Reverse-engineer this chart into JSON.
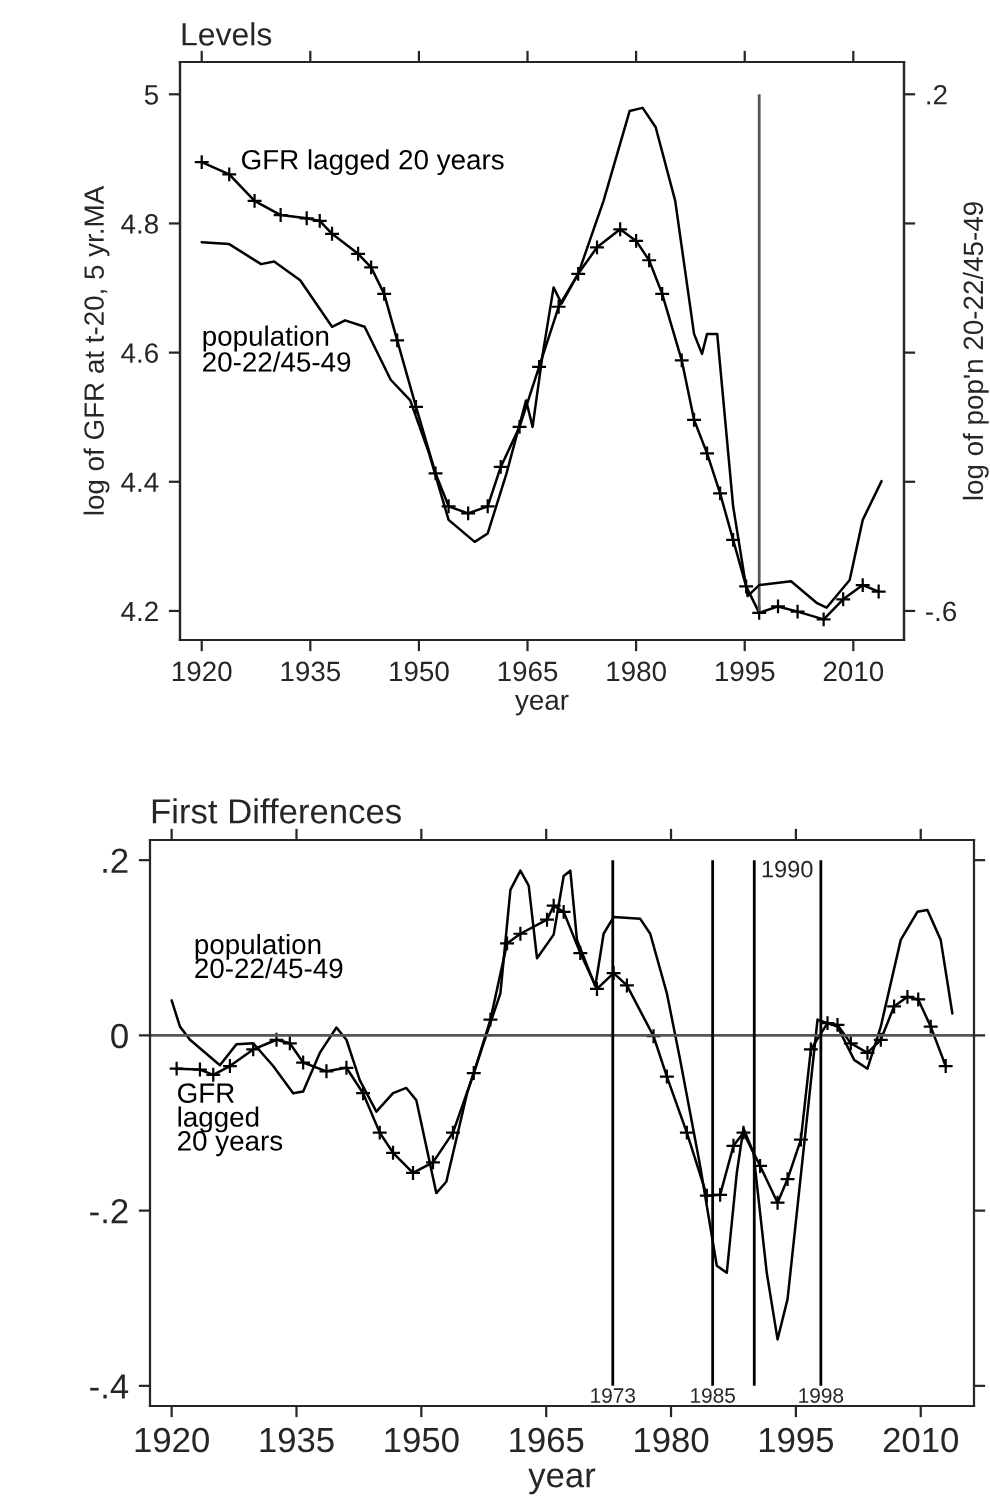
{
  "chart_data": [
    {
      "type": "line",
      "title": "Levels",
      "xlabel": "year",
      "ylabel": "log of GFR at t-20, 5 yr.MA",
      "y2label": "log of pop'n 20-22/45-49",
      "xlim": [
        1917,
        2017
      ],
      "xticks": [
        1920,
        1935,
        1950,
        1965,
        1980,
        1995,
        2010
      ],
      "ylim": [
        4.155,
        5.05
      ],
      "yticks": [
        4.2,
        4.4,
        4.6,
        4.8,
        5
      ],
      "y2lim": [
        -0.645,
        0.25
      ],
      "y2ticks": [
        {
          "value": 0.2,
          "label": ".2"
        },
        {
          "value": 0,
          "label": null
        },
        {
          "value": -0.2,
          "label": null
        },
        {
          "value": -0.4,
          "label": null
        },
        {
          "value": -0.6,
          "label": "-.6"
        }
      ],
      "grid": false,
      "legend": false,
      "ref_lines": [
        {
          "axis": "x",
          "value": 1997,
          "color": "#555555"
        }
      ],
      "series": [
        {
          "name": "GFR lagged 20 years",
          "color": "#000000",
          "marker": "cross",
          "x": [
            1920,
            1923.8,
            1927.3,
            1930.9,
            1934.5,
            1936.3,
            1938,
            1941.6,
            1943.4,
            1945.2,
            1947,
            1949.6,
            1952.3,
            1954.1,
            1956.8,
            1959.5,
            1961.3,
            1963.9,
            1966.6,
            1969.3,
            1972,
            1974.6,
            1977.8,
            1980,
            1981.8,
            1983.6,
            1986.3,
            1988,
            1989.8,
            1991.6,
            1993.4,
            1995.2,
            1997,
            1999.6,
            2002.3,
            2005.9,
            2008.6,
            2011.3,
            2013.5
          ],
          "values": [
            4.895,
            4.876,
            4.835,
            4.813,
            4.808,
            4.804,
            4.784,
            4.753,
            4.732,
            4.691,
            4.619,
            4.516,
            4.413,
            4.362,
            4.351,
            4.362,
            4.423,
            4.485,
            4.578,
            4.671,
            4.722,
            4.763,
            4.791,
            4.773,
            4.743,
            4.691,
            4.588,
            4.496,
            4.444,
            4.382,
            4.31,
            4.238,
            4.197,
            4.207,
            4.199,
            4.187,
            4.218,
            4.24,
            4.23
          ]
        },
        {
          "name": "population\n20-22/45-49",
          "color": "#000000",
          "marker": "none",
          "axis": "y2",
          "x": [
            1920,
            1923.8,
            1928.2,
            1930,
            1933.6,
            1938,
            1939.8,
            1942.5,
            1946.1,
            1948.8,
            1951.4,
            1954.1,
            1957.7,
            1959.5,
            1962.1,
            1964.8,
            1965.7,
            1967.1,
            1968.6,
            1969.7,
            1972,
            1975.5,
            1979.1,
            1980.9,
            1982.7,
            1985.4,
            1988,
            1989.1,
            1989.8,
            1991.2,
            1993.4,
            1995.4,
            1997,
            2001.4,
            2005,
            2006.3,
            2009.5,
            2011.3,
            2013.9
          ],
          "values": [
            -0.029,
            -0.032,
            -0.063,
            -0.059,
            -0.088,
            -0.16,
            -0.15,
            -0.16,
            -0.242,
            -0.274,
            -0.356,
            -0.459,
            -0.493,
            -0.48,
            -0.387,
            -0.274,
            -0.315,
            -0.202,
            -0.099,
            -0.124,
            -0.078,
            0.035,
            0.174,
            0.179,
            0.149,
            0.035,
            -0.171,
            -0.202,
            -0.171,
            -0.171,
            -0.438,
            -0.577,
            -0.56,
            -0.554,
            -0.588,
            -0.595,
            -0.552,
            -0.459,
            -0.399
          ]
        }
      ]
    },
    {
      "type": "line",
      "title": "First Differences",
      "xlabel": "year",
      "xlim": [
        1917.4,
        2016.4
      ],
      "xticks": [
        1920,
        1935,
        1950,
        1965,
        1980,
        1995,
        2010
      ],
      "ylim": [
        -0.423,
        0.223
      ],
      "yticks": [
        {
          "value": 0.2,
          "label": ".2"
        },
        0,
        {
          "value": -0.2,
          "label": "-.2"
        },
        {
          "value": -0.4,
          "label": "-.4"
        }
      ],
      "grid": false,
      "legend": false,
      "ref_lines": [
        {
          "axis": "y",
          "value": 0,
          "color": "#555555"
        },
        {
          "axis": "x",
          "value": 1973,
          "label": "1973",
          "color": "#000000"
        },
        {
          "axis": "x",
          "value": 1985,
          "label": "1985",
          "color": "#000000"
        },
        {
          "axis": "x",
          "value": 1990,
          "label": "1990",
          "color": "#000000"
        },
        {
          "axis": "x",
          "value": 1998,
          "label": "1998",
          "color": "#000000"
        }
      ],
      "series": [
        {
          "name": "population\n20-22/45-49",
          "color": "#000000",
          "marker": "none",
          "x": [
            1920,
            1921,
            1922.2,
            1925.8,
            1927.8,
            1929.8,
            1932.2,
            1934.6,
            1935.8,
            1937.8,
            1939.8,
            1941,
            1942.6,
            1944.6,
            1946.6,
            1948.2,
            1949.4,
            1951.8,
            1953,
            1955.5,
            1957.9,
            1959.5,
            1960.7,
            1961.9,
            1962.9,
            1963.9,
            1965.9,
            1967.1,
            1967.9,
            1968.7,
            1970.9,
            1971.9,
            1973.1,
            1976.3,
            1977.5,
            1979.5,
            1981.1,
            1983.5,
            1985.5,
            1986.7,
            1987.9,
            1988.7,
            1989.9,
            1991.5,
            1992.8,
            1994,
            1995.2,
            1997.6,
            2000,
            2002,
            2003.6,
            2005.2,
            2007.6,
            2009.6,
            2010.8,
            2012.4,
            2013.8
          ],
          "values": [
            0.04,
            0.01,
            -0.005,
            -0.034,
            -0.01,
            -0.009,
            -0.035,
            -0.066,
            -0.064,
            -0.02,
            0.009,
            -0.005,
            -0.051,
            -0.087,
            -0.066,
            -0.06,
            -0.074,
            -0.18,
            -0.167,
            -0.066,
            0.003,
            0.048,
            0.166,
            0.188,
            0.171,
            0.088,
            0.115,
            0.182,
            0.188,
            0.109,
            0.056,
            0.116,
            0.135,
            0.133,
            0.116,
            0.048,
            -0.028,
            -0.149,
            -0.263,
            -0.271,
            -0.157,
            -0.106,
            -0.134,
            -0.271,
            -0.347,
            -0.301,
            -0.195,
            0.018,
            0.01,
            -0.028,
            -0.038,
            0.01,
            0.109,
            0.141,
            0.143,
            0.109,
            0.025
          ]
        },
        {
          "name": "GFR\nlagged\n20 years",
          "color": "#000000",
          "marker": "cross",
          "x": [
            1920.6,
            1923.4,
            1925,
            1927,
            1929.8,
            1932.6,
            1934.2,
            1935.8,
            1938.6,
            1941,
            1943,
            1945,
            1946.6,
            1949,
            1951.4,
            1953.8,
            1956.3,
            1958.3,
            1960.3,
            1961.9,
            1965.1,
            1965.9,
            1967.1,
            1969.1,
            1971.1,
            1973.1,
            1974.7,
            1977.9,
            1979.5,
            1981.9,
            1984.3,
            1985.9,
            1987.5,
            1988.7,
            1990.7,
            1992.8,
            1994,
            1995.6,
            1996.8,
            1998.8,
            2000,
            2001.6,
            2003.6,
            2005.2,
            2006.8,
            2008.4,
            2009.7,
            2011.2,
            2013
          ],
          "values": [
            -0.038,
            -0.039,
            -0.045,
            -0.035,
            -0.016,
            -0.005,
            -0.009,
            -0.031,
            -0.041,
            -0.037,
            -0.066,
            -0.111,
            -0.134,
            -0.157,
            -0.145,
            -0.111,
            -0.043,
            0.018,
            0.105,
            0.116,
            0.132,
            0.148,
            0.141,
            0.094,
            0.053,
            0.071,
            0.057,
            -0.001,
            -0.047,
            -0.111,
            -0.183,
            -0.182,
            -0.126,
            -0.111,
            -0.149,
            -0.191,
            -0.164,
            -0.119,
            -0.016,
            0.014,
            0.012,
            -0.009,
            -0.02,
            -0.005,
            0.033,
            0.044,
            0.041,
            0.01,
            -0.035
          ]
        }
      ]
    }
  ]
}
